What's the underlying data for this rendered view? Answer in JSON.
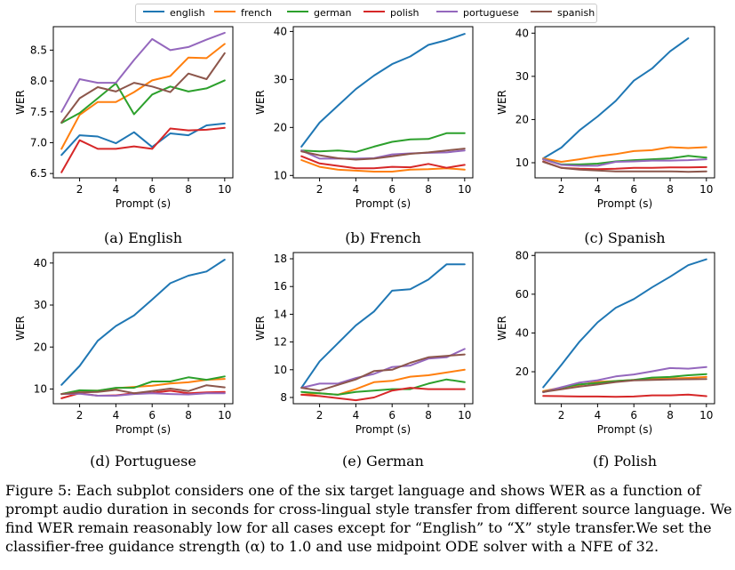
{
  "legend": [
    "english",
    "french",
    "german",
    "polish",
    "portuguese",
    "spanish"
  ],
  "colors": {
    "english": "#1f77b4",
    "french": "#ff7f0e",
    "german": "#2ca02c",
    "polish": "#d62728",
    "portuguese": "#9467bd",
    "spanish": "#8c564b"
  },
  "caption": [
    "Figure 5: Each subplot considers one of the six target language and shows WER as a function of",
    "prompt audio duration in seconds for cross-lingual style transfer from different source language. We",
    "find WER remain reasonably low for all cases except for “English” to “X” style transfer.We set the",
    "classifier-free guidance strength (α) to 1.0 and use midpoint ODE solver with a NFE of 32."
  ],
  "chart_data": [
    {
      "type": "line",
      "subtitle": "(a) English",
      "xlabel": "Prompt (s)",
      "ylabel": "WER",
      "x": [
        1,
        2,
        3,
        4,
        5,
        6,
        7,
        8,
        9,
        10
      ],
      "xticks": [
        2,
        4,
        6,
        8,
        10
      ],
      "yticks": [
        6.5,
        7.0,
        7.5,
        8.0,
        8.5
      ],
      "ytick_labels": [
        "6.5",
        "7.0",
        "7.5",
        "8.0",
        "8.5"
      ],
      "xlim": [
        0.55,
        10.45
      ],
      "ylim": [
        6.43,
        8.88
      ],
      "series": [
        {
          "name": "english",
          "values": [
            6.8,
            7.12,
            7.1,
            6.99,
            7.17,
            6.93,
            7.15,
            7.12,
            7.28,
            7.31
          ]
        },
        {
          "name": "french",
          "values": [
            6.9,
            7.45,
            7.66,
            7.66,
            7.82,
            8.01,
            8.08,
            8.38,
            8.37,
            8.6
          ]
        },
        {
          "name": "german",
          "values": [
            7.32,
            7.48,
            7.72,
            7.96,
            7.46,
            7.78,
            7.91,
            7.83,
            7.88,
            8.01
          ]
        },
        {
          "name": "polish",
          "values": [
            6.52,
            7.04,
            6.9,
            6.9,
            6.94,
            6.9,
            7.23,
            7.2,
            7.21,
            7.24
          ]
        },
        {
          "name": "portuguese",
          "values": [
            7.5,
            8.03,
            7.97,
            7.97,
            8.34,
            8.68,
            8.5,
            8.55,
            8.67,
            8.78
          ]
        },
        {
          "name": "spanish",
          "values": [
            7.33,
            7.72,
            7.9,
            7.83,
            7.97,
            7.91,
            7.82,
            8.12,
            8.03,
            8.45
          ]
        }
      ]
    },
    {
      "type": "line",
      "subtitle": "(b) French",
      "xlabel": "Prompt (s)",
      "ylabel": "WER",
      "x": [
        1,
        2,
        3,
        4,
        5,
        6,
        7,
        8,
        9,
        10
      ],
      "xticks": [
        2,
        4,
        6,
        8,
        10
      ],
      "yticks": [
        10,
        20,
        30,
        40
      ],
      "ytick_labels": [
        "10",
        "20",
        "30",
        "40"
      ],
      "xlim": [
        0.55,
        10.45
      ],
      "ylim": [
        9.5,
        41.0
      ],
      "series": [
        {
          "name": "english",
          "values": [
            16,
            21,
            24.5,
            28,
            30.8,
            33.2,
            34.8,
            37.2,
            38.2,
            39.5
          ]
        },
        {
          "name": "french",
          "values": [
            13.2,
            11.8,
            11.2,
            11.0,
            10.8,
            10.8,
            11.2,
            11.3,
            11.5,
            11.2
          ]
        },
        {
          "name": "german",
          "values": [
            15.2,
            15,
            15.2,
            14.9,
            16,
            17,
            17.5,
            17.6,
            18.8,
            18.8
          ]
        },
        {
          "name": "polish",
          "values": [
            14,
            12.5,
            12,
            11.5,
            11.5,
            11.8,
            11.7,
            12.4,
            11.6,
            12.2
          ]
        },
        {
          "name": "portuguese",
          "values": [
            15.2,
            13.5,
            13.5,
            13.5,
            13.6,
            14.4,
            14.6,
            14.7,
            14.8,
            15.2
          ]
        },
        {
          "name": "spanish",
          "values": [
            15,
            14.2,
            13.6,
            13.3,
            13.5,
            14,
            14.5,
            14.8,
            15.2,
            15.6
          ]
        }
      ]
    },
    {
      "type": "line",
      "subtitle": "(c) Spanish",
      "xlabel": "Prompt (s)",
      "ylabel": "WER",
      "x": [
        1,
        2,
        3,
        4,
        5,
        6,
        7,
        8,
        9,
        10
      ],
      "xticks": [
        2,
        4,
        6,
        8,
        10
      ],
      "yticks": [
        10,
        20,
        30,
        40
      ],
      "ytick_labels": [
        "10",
        "20",
        "30",
        "40"
      ],
      "xlim": [
        0.55,
        10.45
      ],
      "ylim": [
        6.5,
        41.5
      ],
      "series": [
        {
          "name": "english",
          "values": [
            11,
            13.5,
            17.5,
            20.7,
            24.3,
            29,
            31.8,
            35.8,
            38.8,
            null
          ]
        },
        {
          "name": "french",
          "values": [
            11,
            10.2,
            10.8,
            11.5,
            12,
            12.7,
            12.9,
            13.6,
            13.4,
            13.6
          ]
        },
        {
          "name": "german",
          "values": [
            10.8,
            9.6,
            9.6,
            9.8,
            10.3,
            10.6,
            10.8,
            11.0,
            11.6,
            11.2
          ]
        },
        {
          "name": "polish",
          "values": [
            10.3,
            8.8,
            8.6,
            8.5,
            8.6,
            8.8,
            8.8,
            8.9,
            8.9,
            9.0
          ]
        },
        {
          "name": "portuguese",
          "values": [
            10.8,
            9.5,
            9.3,
            9.3,
            10.2,
            10.3,
            10.5,
            10.5,
            10.6,
            10.8
          ]
        },
        {
          "name": "spanish",
          "values": [
            10.2,
            8.8,
            8.4,
            8.2,
            8.0,
            8.0,
            8.0,
            8.0,
            7.9,
            8.0
          ]
        }
      ]
    },
    {
      "type": "line",
      "subtitle": "(d) Portuguese",
      "xlabel": "Prompt (s)",
      "ylabel": "WER",
      "x": [
        1,
        2,
        3,
        4,
        5,
        6,
        7,
        8,
        9,
        10
      ],
      "xticks": [
        2,
        4,
        6,
        8,
        10
      ],
      "yticks": [
        10,
        20,
        30,
        40
      ],
      "ytick_labels": [
        "10",
        "20",
        "30",
        "40"
      ],
      "xlim": [
        0.55,
        10.45
      ],
      "ylim": [
        6.5,
        42.5
      ],
      "series": [
        {
          "name": "english",
          "values": [
            11,
            15.5,
            21.5,
            25,
            27.5,
            31.3,
            35.2,
            37,
            38,
            40.8
          ]
        },
        {
          "name": "french",
          "values": [
            8.8,
            9.6,
            9.6,
            10.2,
            10.5,
            10.8,
            11.3,
            11.6,
            12.2,
            12.4
          ]
        },
        {
          "name": "german",
          "values": [
            8.8,
            9.7,
            9.6,
            10.3,
            10.3,
            11.8,
            11.8,
            12.8,
            12.2,
            13.0
          ]
        },
        {
          "name": "polish",
          "values": [
            7.8,
            9,
            8.4,
            8.5,
            9.0,
            9.1,
            9.6,
            9.0,
            9.2,
            9.3
          ]
        },
        {
          "name": "portuguese",
          "values": [
            8.8,
            8.9,
            8.4,
            8.4,
            8.8,
            9.0,
            8.8,
            8.7,
            9.0,
            9.0
          ]
        },
        {
          "name": "spanish",
          "values": [
            8.8,
            9.2,
            9.3,
            9.8,
            9.0,
            9.5,
            10.1,
            9.5,
            10.9,
            10.4
          ]
        }
      ]
    },
    {
      "type": "line",
      "subtitle": "(e) German",
      "xlabel": "Prompt (s)",
      "ylabel": "WER",
      "x": [
        1,
        2,
        3,
        4,
        5,
        6,
        7,
        8,
        9,
        10
      ],
      "xticks": [
        2,
        4,
        6,
        8,
        10
      ],
      "yticks": [
        8,
        10,
        12,
        14,
        16,
        18
      ],
      "ytick_labels": [
        "8",
        "10",
        "12",
        "14",
        "16",
        "18"
      ],
      "xlim": [
        0.55,
        10.45
      ],
      "ylim": [
        7.55,
        18.45
      ],
      "series": [
        {
          "name": "english",
          "values": [
            8.7,
            10.6,
            11.9,
            13.2,
            14.2,
            15.7,
            15.8,
            16.5,
            17.6,
            17.6
          ]
        },
        {
          "name": "french",
          "values": [
            8.2,
            8.3,
            8.2,
            8.6,
            9.1,
            9.2,
            9.5,
            9.6,
            9.8,
            10.0
          ]
        },
        {
          "name": "german",
          "values": [
            8.4,
            8.3,
            8.2,
            8.4,
            8.5,
            8.6,
            8.6,
            9.0,
            9.3,
            9.1
          ]
        },
        {
          "name": "polish",
          "values": [
            8.2,
            8.1,
            7.95,
            7.8,
            8.0,
            8.5,
            8.7,
            8.6,
            8.6,
            8.6
          ]
        },
        {
          "name": "portuguese",
          "values": [
            8.7,
            9.0,
            9.0,
            9.4,
            9.7,
            10.2,
            10.3,
            10.8,
            10.9,
            11.5
          ]
        },
        {
          "name": "spanish",
          "values": [
            8.7,
            8.5,
            8.9,
            9.3,
            9.9,
            10.0,
            10.5,
            10.9,
            11.0,
            11.1
          ]
        }
      ]
    },
    {
      "type": "line",
      "subtitle": "(f) Polish",
      "xlabel": "Prompt (s)",
      "ylabel": "WER",
      "x": [
        1,
        2,
        3,
        4,
        5,
        6,
        7,
        8,
        9,
        10
      ],
      "xticks": [
        2,
        4,
        6,
        8,
        10
      ],
      "yticks": [
        20,
        40,
        60,
        80
      ],
      "ytick_labels": [
        "20",
        "40",
        "60",
        "80"
      ],
      "xlim": [
        0.55,
        10.45
      ],
      "ylim": [
        3.5,
        81.5
      ],
      "series": [
        {
          "name": "english",
          "values": [
            12,
            23.5,
            35.5,
            45.5,
            53,
            57.5,
            63.5,
            69,
            75,
            78
          ]
        },
        {
          "name": "french",
          "values": [
            10,
            11.8,
            13.2,
            14.8,
            15.2,
            15.8,
            16.2,
            16.5,
            16.8,
            17.3
          ]
        },
        {
          "name": "german",
          "values": [
            9.5,
            11.8,
            13.5,
            14.2,
            15.2,
            15.8,
            17,
            17.3,
            18.2,
            18.8
          ]
        },
        {
          "name": "polish",
          "values": [
            7.5,
            7.4,
            7.2,
            7.2,
            7.1,
            7.2,
            7.8,
            7.8,
            8.2,
            7.4
          ]
        },
        {
          "name": "portuguese",
          "values": [
            9.4,
            12,
            14.4,
            15.6,
            17.6,
            18.6,
            20.2,
            21.9,
            21.6,
            22.4
          ]
        },
        {
          "name": "spanish",
          "values": [
            9.6,
            11,
            12.3,
            13.4,
            14.7,
            15.5,
            15.8,
            16,
            16.1,
            16.2
          ]
        }
      ]
    }
  ]
}
